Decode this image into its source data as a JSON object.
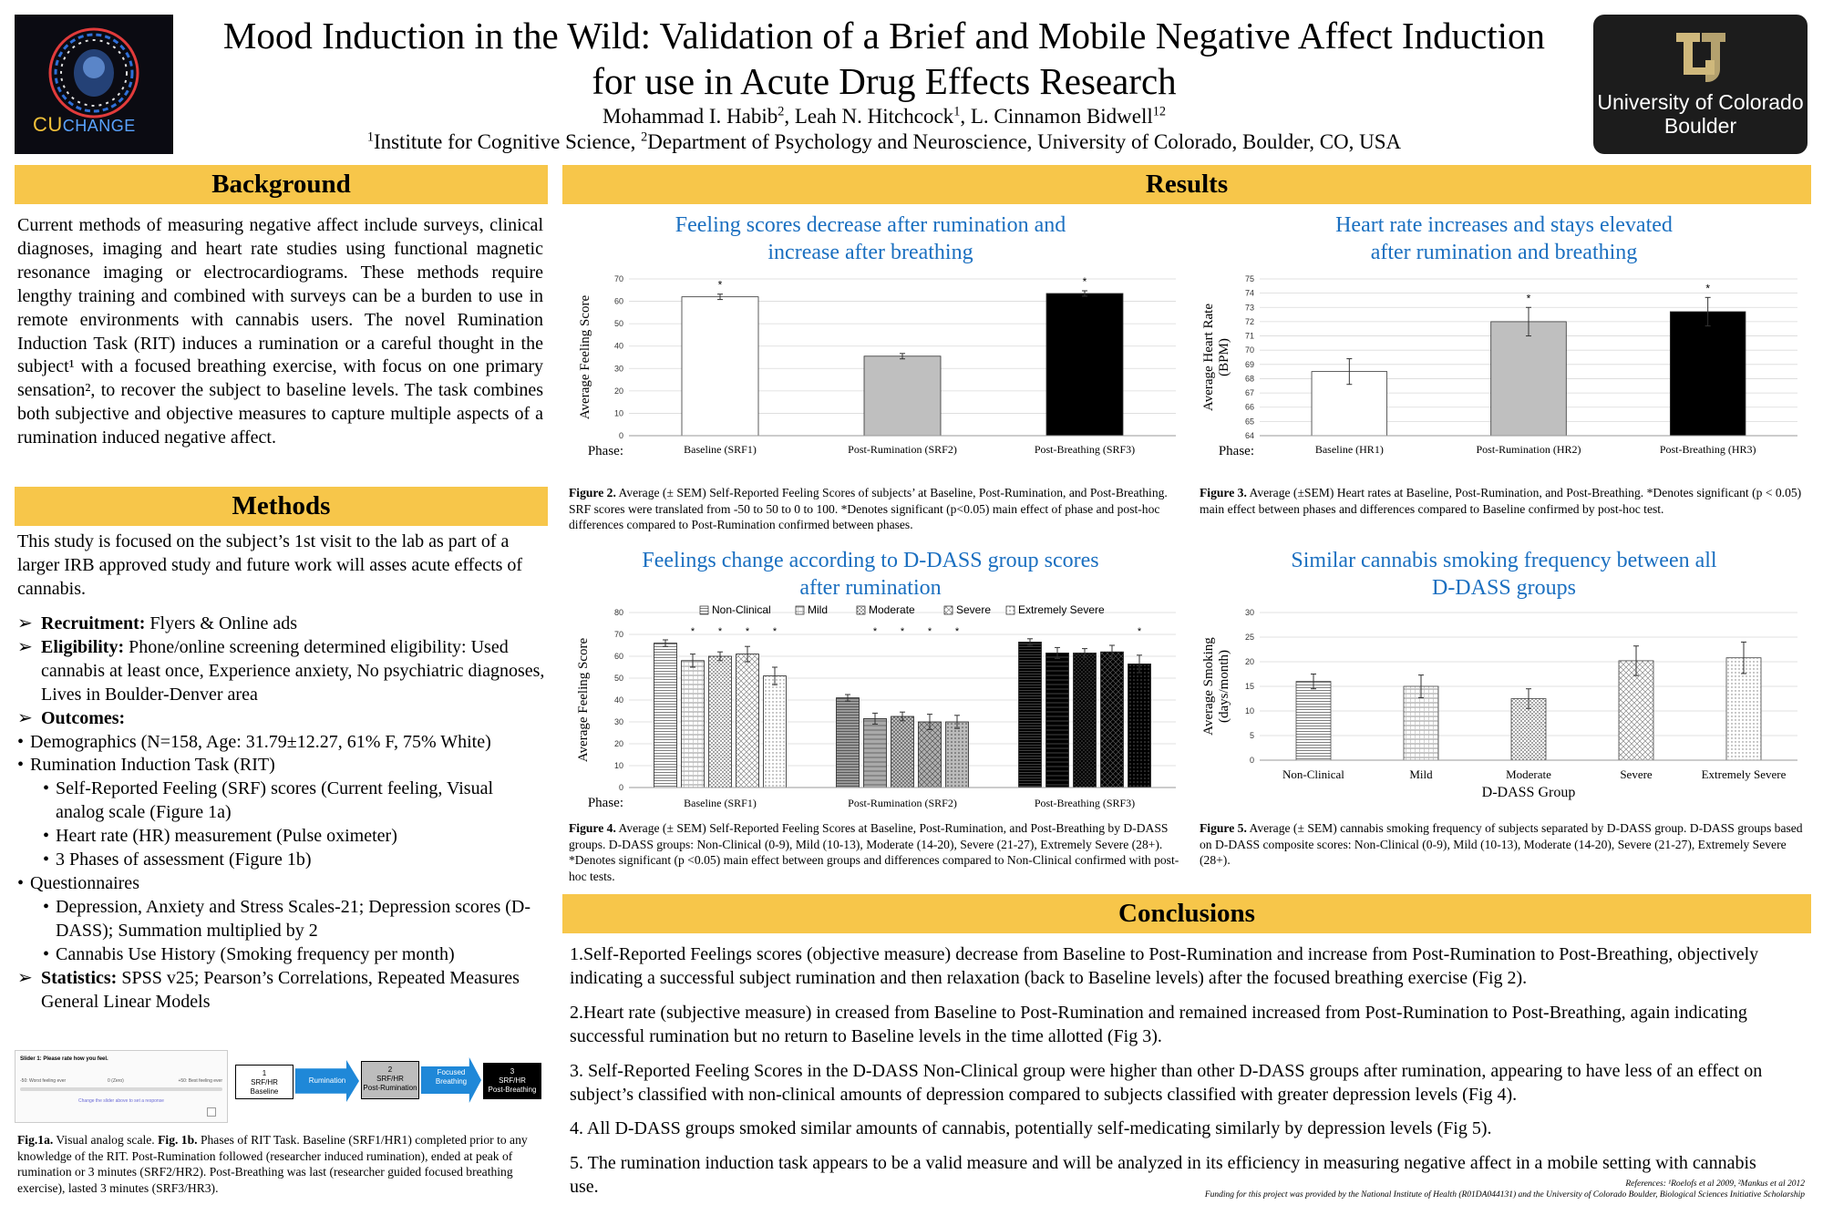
{
  "header": {
    "title_line1": "Mood Induction in the Wild: Validation of a Brief and Mobile Negative Affect Induction",
    "title_line2": "for use in Acute Drug Effects Research",
    "author1": "Mohammad I. Habib",
    "author1_sup": "2",
    "author2": ", Leah N. Hitchcock",
    "author2_sup": "1",
    "author3": ", L. Cinnamon Bidwell",
    "author3_sup": "12",
    "affil1_sup": "1",
    "affil1": "Institute for Cognitive Science, ",
    "affil2_sup": "2",
    "affil2": "Department of Psychology and Neuroscience, University of Colorado, Boulder, CO, USA",
    "logo_left_text": "CU",
    "logo_left_text2": "CHANGE",
    "logo_right_line1": "University of Colorado",
    "logo_right_line2": "Boulder"
  },
  "background": {
    "heading": "Background",
    "body": "Current methods of measuring negative affect include surveys, clinical diagnoses, imaging and heart rate studies using functional magnetic resonance imaging or electrocardiograms. These methods require lengthy training and combined with surveys can be a burden to use in remote environments with cannabis users. The novel Rumination Induction Task (RIT) induces a rumination or a careful thought in the subject¹ with a focused breathing exercise, with focus on one primary sensation², to recover the subject to baseline levels. The task combines both subjective and objective measures to capture multiple aspects of a rumination induced negative affect."
  },
  "methods": {
    "heading": "Methods",
    "intro": "This study is focused on the subject’s 1st visit to the lab as part of a larger IRB approved study and future work will asses acute effects of cannabis.",
    "items": [
      {
        "bullet": "➢",
        "bold": "Recruitment:",
        "text": " Flyers & Online ads",
        "indent": 0
      },
      {
        "bullet": "➢",
        "bold": "Eligibility:",
        "text": " Phone/online screening determined eligibility: Used cannabis at least once, Experience anxiety, No psychiatric diagnoses, Lives in Boulder-Denver area",
        "indent": 0
      },
      {
        "bullet": "➢",
        "bold": "Outcomes:",
        "text": "",
        "indent": 0
      },
      {
        "bullet": "•",
        "bold": "",
        "text": "Demographics (N=158, Age: 31.79±12.27, 61% F, 75% White)",
        "indent": 0
      },
      {
        "bullet": "•",
        "bold": "",
        "text": "Rumination Induction Task (RIT)",
        "indent": 0
      },
      {
        "bullet": "•",
        "bold": "",
        "text": "Self-Reported Feeling (SRF) scores (Current feeling, Visual analog scale (Figure 1a)",
        "indent": 1
      },
      {
        "bullet": "•",
        "bold": "",
        "text": "Heart rate (HR) measurement (Pulse oximeter)",
        "indent": 1
      },
      {
        "bullet": "•",
        "bold": "",
        "text": "3 Phases of assessment (Figure 1b)",
        "indent": 1
      },
      {
        "bullet": "•",
        "bold": "",
        "text": "Questionnaires",
        "indent": 0
      },
      {
        "bullet": "•",
        "bold": "",
        "text": "Depression, Anxiety and Stress Scales-21; Depression scores (D-DASS); Summation multiplied by 2",
        "indent": 1
      },
      {
        "bullet": "•",
        "bold": "",
        "text": "Cannabis Use History (Smoking frequency per month)",
        "indent": 1
      },
      {
        "bullet": "➢",
        "bold": "Statistics:",
        "text": " SPSS v25; Pearson’s Correlations, Repeated Measures General Linear Models",
        "indent": 0
      }
    ],
    "fig1a": {
      "title": "Slider 1: Please rate how you feel.",
      "left": "-50: Worst feeling ever",
      "mid": "0 (Zero)",
      "right": "+50: Best feeling ever",
      "hint": "Change the slider above to set a response"
    },
    "fig1b": {
      "box1": [
        "1",
        "SRF/HR",
        "Baseline"
      ],
      "arrow1": "Rumination",
      "box2": [
        "2",
        "SRF/HR",
        "Post-Rumination"
      ],
      "arrow2": "Focused Breathing",
      "box3": [
        "3",
        "SRF/HR",
        "Post-Breathing"
      ]
    },
    "caption_bold1": "Fig.1a.",
    "caption_text1": " Visual analog scale. ",
    "caption_bold2": "Fig. 1b.",
    "caption_text2": " Phases of RIT Task. Baseline (SRF1/HR1) completed prior to any knowledge of the RIT. Post-Rumination followed (researcher induced rumination), ended at peak of rumination or 3 minutes (SRF2/HR2). Post-Breathing was last (researcher guided focused breathing exercise), lasted 3 minutes (SRF3/HR3)."
  },
  "results": {
    "heading": "Results",
    "fig2_title1": "Feeling scores decrease after rumination and",
    "fig2_title2": "increase after breathing",
    "fig2_cap_bold": "Figure 2.",
    "fig2_cap": " Average (± SEM) Self-Reported Feeling Scores of subjects’ at Baseline, Post-Rumination, and Post-Breathing. SRF scores were translated from -50 to 50 to 0 to 100. *Denotes significant (p<0.05) main effect of phase and post-hoc differences compared to Post-Rumination confirmed between phases.",
    "fig3_title1": "Heart rate increases and stays elevated",
    "fig3_title2": "after rumination and breathing",
    "fig3_cap_bold": "Figure 3.",
    "fig3_cap": " Average (±SEM) Heart rates at Baseline, Post-Rumination, and Post-Breathing. *Denotes significant (p < 0.05) main effect between phases and differences compared to Baseline confirmed by post-hoc test.",
    "fig4_title1": "Feelings change according to D-DASS group scores",
    "fig4_title2": "after rumination",
    "fig4_cap_bold": "Figure 4.",
    "fig4_cap": " Average (± SEM) Self-Reported Feeling Scores at Baseline, Post-Rumination, and Post-Breathing by D-DASS groups. D-DASS groups: Non-Clinical (0-9), Mild (10-13), Moderate (14-20), Severe (21-27), Extremely Severe (28+). *Denotes significant (p <0.05) main effect between groups and differences compared to Non-Clinical confirmed with post-hoc tests.",
    "fig5_title1": "Similar cannabis smoking frequency between all",
    "fig5_title2": "D-DASS groups",
    "fig5_cap_bold": "Figure 5.",
    "fig5_cap": " Average (± SEM) cannabis smoking frequency of subjects separated by D-DASS group. D-DASS groups based on D-DASS composite scores: Non-Clinical (0-9), Mild (10-13), Moderate (14-20), Severe (21-27), Extremely Severe (28+)."
  },
  "conclusions": {
    "heading": "Conclusions",
    "items": [
      "1.Self-Reported Feelings scores (objective measure) decrease from Baseline to Post-Rumination and increase from Post-Rumination to Post-Breathing, objectively indicating a successful subject rumination and then relaxation (back to Baseline levels) after the focused breathing exercise (Fig 2).",
      "2.Heart rate (subjective measure) in     creased from Baseline to Post-Rumination and remained increased from Post-Rumination to Post-Breathing, again indicating successful rumination but no return to Baseline levels in the time allotted (Fig 3).",
      "3. Self-Reported Feeling Scores in the D-DASS Non-Clinical group were higher than other D-DASS groups after rumination, appearing to have less of an effect on subject’s classified with non-clinical amounts of depression compared to subjects classified with greater depression levels (Fig 4).",
      "4. All D-DASS groups smoked similar amounts of cannabis, potentially self-medicating similarly by depression levels (Fig 5).",
      "5. The rumination induction task appears to be a valid measure and will be analyzed in its efficiency in measuring negative affect in a mobile setting with cannabis use."
    ],
    "references": "References: ¹Roelofs et al 2009, ²Mankus et al 2012",
    "funding": "Funding for this project was provided by the National Institute of Health (R01DA044131) and the University of Colorado Boulder, Biological Sciences Initiative Scholarship"
  },
  "chart_data": [
    {
      "type": "bar",
      "categories": [
        "Baseline (SRF1)",
        "Post-Rumination (SRF2)",
        "Post-Breathing (SRF3)"
      ],
      "values": [
        62,
        35.5,
        63.5
      ],
      "errors": [
        1.2,
        1.2,
        1.2
      ],
      "significant": [
        true,
        false,
        true
      ],
      "fills": [
        "#ffffff",
        "#bfbfbf",
        "#000000"
      ],
      "ylabel": "Average Feeling Score",
      "xprefix": "Phase:",
      "ylim": [
        0,
        70
      ],
      "yticks": [
        0,
        10,
        20,
        30,
        40,
        50,
        60,
        70
      ]
    },
    {
      "type": "bar",
      "categories": [
        "Baseline (HR1)",
        "Post-Rumination (HR2)",
        "Post-Breathing (HR3)"
      ],
      "values": [
        68.5,
        72,
        72.7
      ],
      "errors": [
        0.9,
        1.0,
        1.0
      ],
      "significant": [
        false,
        true,
        true
      ],
      "fills": [
        "#ffffff",
        "#bfbfbf",
        "#000000"
      ],
      "ylabel": "Average Heart Rate (BPM)",
      "xprefix": "Phase:",
      "ylim": [
        64,
        75
      ],
      "yticks": [
        64,
        65,
        66,
        67,
        68,
        69,
        70,
        71,
        72,
        73,
        74,
        75
      ]
    },
    {
      "type": "bar",
      "categories": [
        "Baseline (SRF1)",
        "Post-Rumination (SRF2)",
        "Post-Breathing (SRF3)"
      ],
      "series": [
        {
          "name": "Non-Clinical",
          "values": [
            66,
            41,
            66.5
          ],
          "errors": [
            1.5,
            1.5,
            1.5
          ]
        },
        {
          "name": "Mild",
          "values": [
            58,
            31.5,
            61.5
          ],
          "errors": [
            3,
            2.5,
            2.5
          ]
        },
        {
          "name": "Moderate",
          "values": [
            60,
            32.5,
            61.5
          ],
          "errors": [
            2,
            2,
            2
          ]
        },
        {
          "name": "Severe",
          "values": [
            61,
            30,
            62
          ],
          "errors": [
            3.5,
            3.5,
            3
          ]
        },
        {
          "name": "Extremely Severe",
          "values": [
            51,
            30,
            56.5
          ],
          "errors": [
            4,
            3,
            4
          ]
        }
      ],
      "significant": [
        [
          false,
          true,
          true,
          true,
          true
        ],
        [
          false,
          true,
          true,
          true,
          true
        ],
        [
          false,
          false,
          false,
          false,
          true
        ]
      ],
      "ylabel": "Average Feeling Score",
      "xprefix": "Phase:",
      "ylim": [
        0,
        80
      ],
      "yticks": [
        0,
        10,
        20,
        30,
        40,
        50,
        60,
        70,
        80
      ],
      "legend": "top"
    },
    {
      "type": "bar",
      "categories": [
        "Non-Clinical",
        "Mild",
        "Moderate",
        "Severe",
        "Extremely Severe"
      ],
      "values": [
        16,
        15,
        12.5,
        20.2,
        20.8
      ],
      "errors": [
        1.5,
        2.3,
        2,
        3,
        3.2
      ],
      "ylabel": "Average Smoking (days/month)",
      "xlabel": "D-DASS Group",
      "ylim": [
        0,
        30
      ],
      "yticks": [
        0,
        5,
        10,
        15,
        20,
        25,
        30
      ]
    }
  ]
}
